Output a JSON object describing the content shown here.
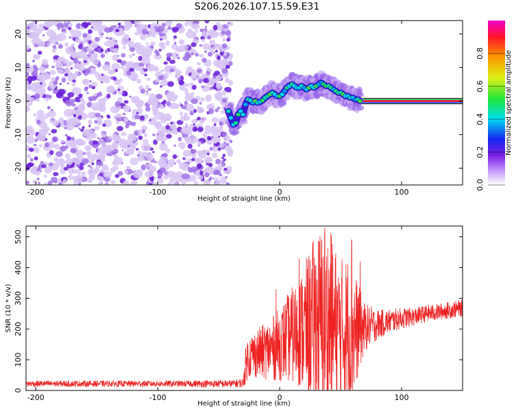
{
  "page_title": "S206.2026.107.15.59.E31",
  "colors": {
    "snr_line": "#ee2222",
    "baseline_fill": "#ee2244",
    "baseline_edge_top": "#00cc44",
    "baseline_edge_bottom": "#1144ff",
    "scatter_light": "#d8c4f4",
    "scatter_mid": "#a070e8",
    "scatter_dark": "#6a1ad8"
  },
  "chart_data": [
    {
      "type": "heatmap",
      "title": "",
      "xlabel": "Height of straight line (km)",
      "ylabel": "Frequency (Hz)",
      "xlim": [
        -208,
        150
      ],
      "ylim": [
        -25,
        24
      ],
      "x_ticks": [
        -200,
        -100,
        0,
        100
      ],
      "y_ticks": [
        -20,
        -10,
        0,
        10,
        20
      ],
      "noise_region_x": [
        -208,
        -40
      ],
      "signal_trace": {
        "x": [
          -42,
          -40,
          -38,
          -36,
          -34,
          -32,
          -30,
          -28,
          -26,
          -24,
          -22,
          -20,
          -18,
          -16,
          -14,
          -12,
          -10,
          -8,
          -6,
          -4,
          -2,
          0,
          2,
          4,
          6,
          8,
          10,
          12,
          14,
          16,
          18,
          20,
          22,
          24,
          26,
          28,
          30,
          32,
          34,
          36,
          38,
          40,
          42,
          44,
          46,
          48,
          50,
          52,
          54,
          56,
          58,
          60,
          62,
          64,
          66
        ],
        "y": [
          -3,
          -5,
          -7,
          -6.5,
          -4,
          -3,
          -4,
          -1,
          0.5,
          0.2,
          -0.5,
          0,
          -0.5,
          -0.2,
          0.2,
          1,
          1.5,
          2,
          2.5,
          2,
          1.5,
          1.5,
          2,
          3,
          4,
          4.5,
          5,
          4.5,
          4,
          4,
          4.5,
          4,
          3.5,
          4,
          4.5,
          4,
          4.5,
          5,
          5.5,
          5,
          4.5,
          4.5,
          4,
          3.5,
          3,
          2.5,
          2.5,
          2,
          1.5,
          1.5,
          1,
          1,
          0.5,
          0.5,
          0
        ]
      },
      "baseline": {
        "x": [
          67,
          150
        ],
        "y": 0
      },
      "colorbar": {
        "label": "Normalized spectral amplitude",
        "ticks": [
          "0.0",
          "0.2",
          "0.4",
          "0.6",
          "0.8"
        ],
        "range": [
          0,
          1
        ]
      }
    },
    {
      "type": "line",
      "title": "",
      "xlabel": "Height of straight line (km)",
      "ylabel": "SNR (10 * v/v)",
      "xlim": [
        -208,
        150
      ],
      "ylim": [
        0,
        535
      ],
      "x_ticks": [
        -200,
        -100,
        0,
        100
      ],
      "y_ticks": [
        0,
        100,
        200,
        300,
        400,
        500
      ],
      "series": [
        {
          "name": "SNR",
          "x": [
            -208,
            -160,
            -120,
            -80,
            -60,
            -40,
            -30,
            -28,
            -26,
            -20,
            -14,
            -8,
            -4,
            0,
            8,
            16,
            20,
            26,
            30,
            34,
            36,
            40,
            44,
            48,
            50,
            56,
            60,
            62,
            66,
            70,
            80,
            90,
            100,
            110,
            120,
            130,
            140,
            150
          ],
          "base": [
            22,
            22,
            22,
            22,
            22,
            22,
            24,
            80,
            110,
            120,
            125,
            135,
            140,
            150,
            175,
            190,
            200,
            215,
            225,
            220,
            215,
            210,
            205,
            200,
            195,
            190,
            190,
            195,
            200,
            205,
            215,
            225,
            235,
            240,
            250,
            255,
            262,
            268
          ],
          "amp": [
            10,
            10,
            10,
            10,
            12,
            12,
            15,
            60,
            70,
            80,
            90,
            100,
            110,
            120,
            150,
            180,
            210,
            260,
            300,
            320,
            330,
            320,
            290,
            240,
            240,
            260,
            250,
            190,
            130,
            80,
            50,
            40,
            35,
            30,
            28,
            28,
            28,
            28
          ],
          "peaks": [
            {
              "x": 37,
              "y": 530
            },
            {
              "x": 42,
              "y": 512
            },
            {
              "x": 59,
              "y": 490
            },
            {
              "x": 16,
              "y": 430
            },
            {
              "x": -3,
              "y": 330
            },
            {
              "x": 66,
              "y": 420
            }
          ]
        }
      ]
    }
  ]
}
